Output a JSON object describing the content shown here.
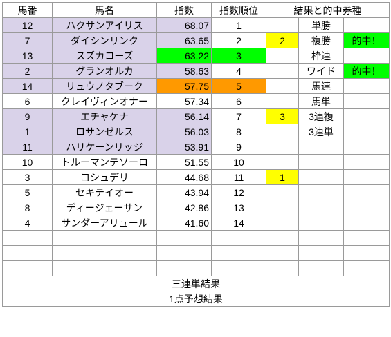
{
  "colors": {
    "highlight_row": "#d9d2e9",
    "top_pick": "#00ff00",
    "hot_pick": "#ff9900",
    "result_mark": "#ffff00",
    "hit_mark": "#00ff00"
  },
  "headers": {
    "number": "馬番",
    "name": "馬名",
    "index": "指数",
    "rank": "指数順位",
    "results": "結果と的中券種"
  },
  "horses": [
    {
      "number": "12",
      "name": "ハクサンアイリス",
      "index": "68.07",
      "rank": "1",
      "finish": "",
      "ticket": "単勝",
      "hit": ""
    },
    {
      "number": "7",
      "name": "ダイシンリンク",
      "index": "63.65",
      "rank": "2",
      "finish": "2",
      "ticket": "複勝",
      "hit": "的中！"
    },
    {
      "number": "13",
      "name": "スズカコーズ",
      "index": "63.22",
      "rank": "3",
      "finish": "",
      "ticket": "枠連",
      "hit": ""
    },
    {
      "number": "2",
      "name": "グランオルカ",
      "index": "58.63",
      "rank": "4",
      "finish": "",
      "ticket": "ワイド",
      "hit": "的中！"
    },
    {
      "number": "14",
      "name": "リュウノタブーク",
      "index": "57.75",
      "rank": "5",
      "finish": "",
      "ticket": "馬連",
      "hit": ""
    },
    {
      "number": "6",
      "name": "クレイヴィンオナー",
      "index": "57.34",
      "rank": "6",
      "finish": "",
      "ticket": "馬単",
      "hit": ""
    },
    {
      "number": "9",
      "name": "エチャケナ",
      "index": "56.14",
      "rank": "7",
      "finish": "3",
      "ticket": "3連複",
      "hit": ""
    },
    {
      "number": "1",
      "name": "ロサンゼルス",
      "index": "56.03",
      "rank": "8",
      "finish": "",
      "ticket": "3連単",
      "hit": ""
    },
    {
      "number": "11",
      "name": "ハリケーンリッジ",
      "index": "53.91",
      "rank": "9",
      "finish": "",
      "ticket": "",
      "hit": ""
    },
    {
      "number": "10",
      "name": "トルーマンテソーロ",
      "index": "51.55",
      "rank": "10",
      "finish": "",
      "ticket": "",
      "hit": ""
    },
    {
      "number": "3",
      "name": "コシュデリ",
      "index": "44.68",
      "rank": "11",
      "finish": "1",
      "ticket": "",
      "hit": ""
    },
    {
      "number": "5",
      "name": "セキテイオー",
      "index": "43.94",
      "rank": "12",
      "finish": "",
      "ticket": "",
      "hit": ""
    },
    {
      "number": "8",
      "name": "ディージェーサン",
      "index": "42.86",
      "rank": "13",
      "finish": "",
      "ticket": "",
      "hit": ""
    },
    {
      "number": "4",
      "name": "サンダーアリュール",
      "index": "41.60",
      "rank": "14",
      "finish": "",
      "ticket": "",
      "hit": ""
    }
  ],
  "footer": {
    "trifecta_result": "三連単結果",
    "one_point_result": "1点予想結果"
  }
}
